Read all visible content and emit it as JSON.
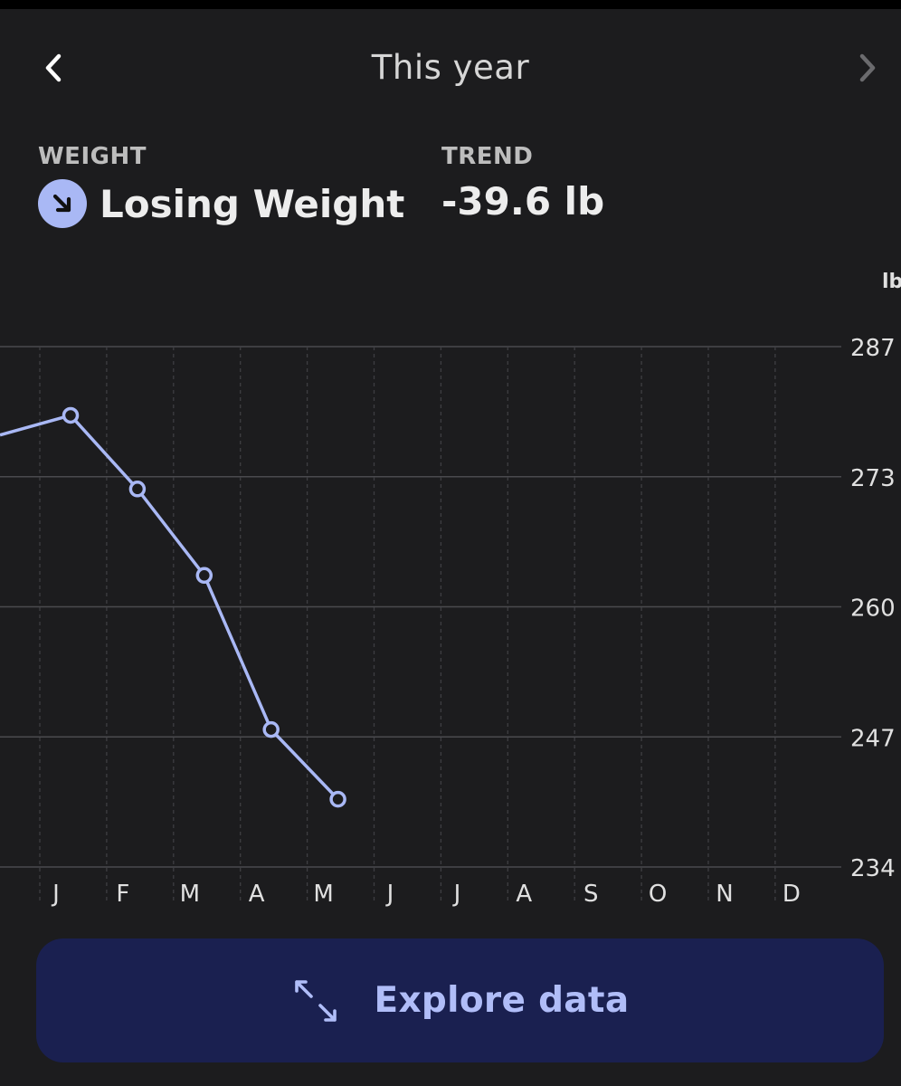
{
  "header": {
    "title": "This year",
    "prev_icon": "chevron-left-icon",
    "next_icon": "chevron-right-icon"
  },
  "stats": {
    "weight_label": "WEIGHT",
    "weight_value": "Losing Weight",
    "weight_icon": "arrow-down-right-icon",
    "trend_label": "TREND",
    "trend_value": "-39.6 lb"
  },
  "colors": {
    "background": "#1c1c1e",
    "line": "#a9b8f5",
    "button": "#1a2050",
    "button_text": "#b0bdf8"
  },
  "chart_data": {
    "type": "line",
    "unit": "lb",
    "categories": [
      "J",
      "F",
      "M",
      "A",
      "M",
      "J",
      "J",
      "A",
      "S",
      "O",
      "N",
      "D"
    ],
    "y_ticks": [
      "287",
      "273",
      "260",
      "247",
      "234"
    ],
    "ylim": [
      234,
      287
    ],
    "grid": true,
    "series": [
      {
        "values": [
          280,
          272.5,
          263.7,
          248,
          240.9,
          null,
          null,
          null,
          null,
          null,
          null,
          null
        ],
        "prior_value": 278
      }
    ]
  },
  "explore_button": {
    "label": "Explore data",
    "icon": "expand-arrows-icon"
  }
}
